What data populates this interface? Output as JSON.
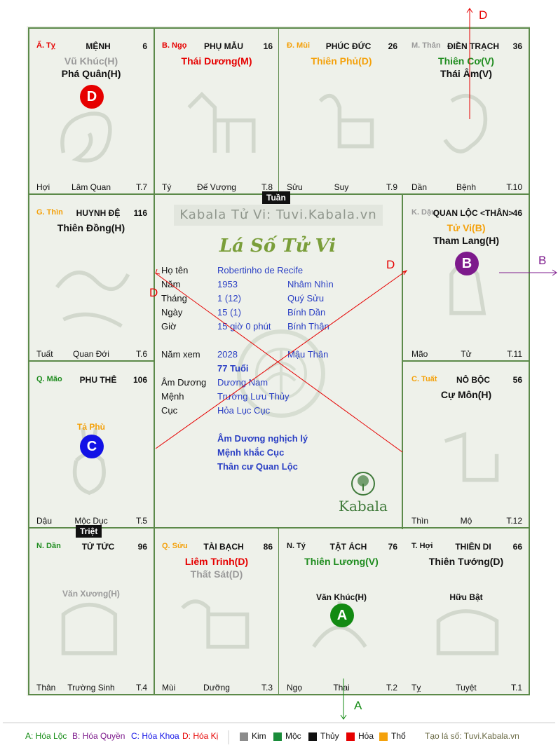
{
  "cells": [
    {
      "id": "ty",
      "branch": "Ấ. Tỵ",
      "branch_color": "#e60000",
      "palace": "MỆNH",
      "number": "6",
      "stars": [
        {
          "text": "Vũ Khúc(H)",
          "color": "#9a9a9a",
          "kind": "sub"
        },
        {
          "text": "Phá Quân(H)",
          "color": "#111111",
          "kind": "main"
        }
      ],
      "minor": [],
      "badge": {
        "letter": "D",
        "color": "#e60000"
      },
      "bottom": {
        "left": "Hợi",
        "mid": "Lâm Quan",
        "right": "T.7"
      }
    },
    {
      "id": "ngo",
      "branch": "B. Ngọ",
      "branch_color": "#e60000",
      "palace": "PHỤ MẪU",
      "number": "16",
      "stars": [
        {
          "text": "Thái Dương(M)",
          "color": "#e60000",
          "kind": "main"
        }
      ],
      "minor": [],
      "badge": null,
      "bottom": {
        "left": "Tý",
        "mid": "Đế Vượng",
        "right": "T.8"
      }
    },
    {
      "id": "mui",
      "branch": "Đ. Mùi",
      "branch_color": "#f4a10b",
      "palace": "PHÚC ĐỨC",
      "number": "26",
      "stars": [
        {
          "text": "Thiên Phủ(D)",
          "color": "#f4a10b",
          "kind": "main"
        }
      ],
      "minor": [],
      "badge": null,
      "bottom": {
        "left": "Sửu",
        "mid": "Suy",
        "right": "T.9"
      }
    },
    {
      "id": "than",
      "branch": "M. Thân",
      "branch_color": "#9a9a9a",
      "palace": "ĐIỀN TRẠCH",
      "number": "36",
      "stars": [
        {
          "text": "Thiên Cơ(V)",
          "color": "#1e8c1e",
          "kind": "main"
        },
        {
          "text": "Thái Âm(V)",
          "color": "#111111",
          "kind": "main"
        }
      ],
      "minor": [],
      "badge": null,
      "bottom": {
        "left": "Dần",
        "mid": "Bệnh",
        "right": "T.10"
      }
    },
    {
      "id": "thin",
      "branch": "G. Thìn",
      "branch_color": "#f4a10b",
      "palace": "HUYNH ĐỆ",
      "number": "116",
      "stars": [
        {
          "text": "Thiên Đồng(H)",
          "color": "#111111",
          "kind": "main"
        }
      ],
      "minor": [],
      "badge": null,
      "bottom": {
        "left": "Tuất",
        "mid": "Quan Đới",
        "right": "T.6"
      }
    },
    {
      "id": "dau",
      "branch": "K. Dậu",
      "branch_color": "#9a9a9a",
      "palace": "QUAN LỘC <THÂN>",
      "number": "46",
      "stars": [
        {
          "text": "Tử Vi(B)",
          "color": "#f4a10b",
          "kind": "main"
        },
        {
          "text": "Tham Lang(H)",
          "color": "#111111",
          "kind": "main"
        }
      ],
      "minor": [],
      "badge": {
        "letter": "B",
        "color": "#7d1a8c"
      },
      "bottom": {
        "left": "Mão",
        "mid": "Tử",
        "right": "T.11"
      }
    },
    {
      "id": "mao",
      "branch": "Q. Mão",
      "branch_color": "#1e8c1e",
      "palace": "PHU THÊ",
      "number": "106",
      "stars": [],
      "minor": [
        {
          "text": "Tả Phù",
          "color": "#f4a10b"
        }
      ],
      "badge": {
        "letter": "C",
        "color": "#1212e6"
      },
      "bottom": {
        "left": "Dậu",
        "mid": "Mộc Dục",
        "right": "T.5"
      }
    },
    {
      "id": "tuat",
      "branch": "C. Tuất",
      "branch_color": "#f4a10b",
      "palace": "NÔ BỘC",
      "number": "56",
      "stars": [
        {
          "text": "Cự Môn(H)",
          "color": "#111111",
          "kind": "main"
        }
      ],
      "minor": [],
      "badge": null,
      "bottom": {
        "left": "Thìn",
        "mid": "Mộ",
        "right": "T.12"
      }
    },
    {
      "id": "dan",
      "branch": "N. Dần",
      "branch_color": "#1e8c1e",
      "palace": "TỬ TỨC",
      "number": "96",
      "stars": [],
      "minor": [
        {
          "text": "Văn Xương(H)",
          "color": "#9a9a9a"
        }
      ],
      "badge": null,
      "bottom": {
        "left": "Thân",
        "mid": "Trường Sinh",
        "right": "T.4"
      }
    },
    {
      "id": "suu",
      "branch": "Q. Sửu",
      "branch_color": "#f4a10b",
      "palace": "TÀI BẠCH",
      "number": "86",
      "stars": [
        {
          "text": "Liêm Trinh(D)",
          "color": "#e60000",
          "kind": "main"
        },
        {
          "text": "Thất Sát(D)",
          "color": "#9a9a9a",
          "kind": "main"
        }
      ],
      "minor": [],
      "badge": null,
      "bottom": {
        "left": "Mùi",
        "mid": "Dưỡng",
        "right": "T.3"
      }
    },
    {
      "id": "tys",
      "branch": "N. Tý",
      "branch_color": "#111111",
      "palace": "TẬT ÁCH",
      "number": "76",
      "stars": [
        {
          "text": "Thiên Lương(V)",
          "color": "#1e8c1e",
          "kind": "main"
        }
      ],
      "minor": [
        {
          "text": "Văn Khúc(H)",
          "color": "#111111"
        }
      ],
      "badge": {
        "letter": "A",
        "color": "#128a12"
      },
      "bottom": {
        "left": "Ngọ",
        "mid": "Thai",
        "right": "T.2"
      }
    },
    {
      "id": "hoi",
      "branch": "T. Hợi",
      "branch_color": "#111111",
      "palace": "THIÊN DI",
      "number": "66",
      "stars": [
        {
          "text": "Thiên Tướng(D)",
          "color": "#111111",
          "kind": "main"
        }
      ],
      "minor": [
        {
          "text": "Hữu Bật",
          "color": "#111111"
        }
      ],
      "badge": null,
      "bottom": {
        "left": "Tỵ",
        "mid": "Tuyệt",
        "right": "T.1"
      }
    }
  ],
  "center": {
    "watermark": "Kabala Tử Vi: Tuvi.Kabala.vn",
    "title": "Lá Số Tử Vi",
    "rows": [
      {
        "label": "Họ tên",
        "value": "Robertinho de Recife",
        "extra": ""
      },
      {
        "label": "Năm",
        "value": "1953",
        "extra": "Nhâm Nhìn"
      },
      {
        "label": "Tháng",
        "value": "1  (12)",
        "extra": "Quý Sửu"
      },
      {
        "label": "Ngày",
        "value": "15  (1)",
        "extra": "Bính Dần"
      },
      {
        "label": "Giờ",
        "value": "15 giờ 0 phút",
        "extra": "Bính Thận"
      }
    ],
    "rows2": [
      {
        "label": "Năm xem",
        "value": "2028",
        "extra": "Mậu Thân"
      },
      {
        "label": "",
        "value": "77 Tuổi",
        "extra": ""
      },
      {
        "label": "Âm Dương",
        "value": "Dương Nam",
        "extra": ""
      },
      {
        "label": "Mệnh",
        "value": "Trường Lưu Thủy",
        "extra": ""
      },
      {
        "label": "Cục",
        "value": "Hỏa Lục Cục",
        "extra": ""
      }
    ],
    "notes": [
      "Âm Dương nghịch lý",
      "Mệnh khắc Cục",
      "Thân cư Quan Lộc"
    ],
    "logo_text": "Kabala"
  },
  "tags": {
    "tuan": "Tuần",
    "triet": "Triệt"
  },
  "arrow_labels": {
    "d_top": "D",
    "d_left": "D",
    "d_mid": "D",
    "b": "B",
    "a": "A"
  },
  "legend": {
    "a": "A: Hóa Lộc",
    "b": "B: Hóa Quyền",
    "c": "C: Hóa Khoa",
    "d": "D: Hóa Kị",
    "elements": [
      {
        "name": "Kim",
        "color": "#8c8c8c"
      },
      {
        "name": "Mộc",
        "color": "#1a8c3a"
      },
      {
        "name": "Thủy",
        "color": "#111111"
      },
      {
        "name": "Hỏa",
        "color": "#e60000"
      },
      {
        "name": "Thổ",
        "color": "#f4a10b"
      }
    ],
    "credit": "Tạo lá số: Tuvi.Kabala.vn"
  },
  "colors": {
    "grid": "#5c8a4a",
    "line": "#e60000",
    "arrow_b": "#7d1a8c",
    "arrow_a": "#128a12"
  }
}
